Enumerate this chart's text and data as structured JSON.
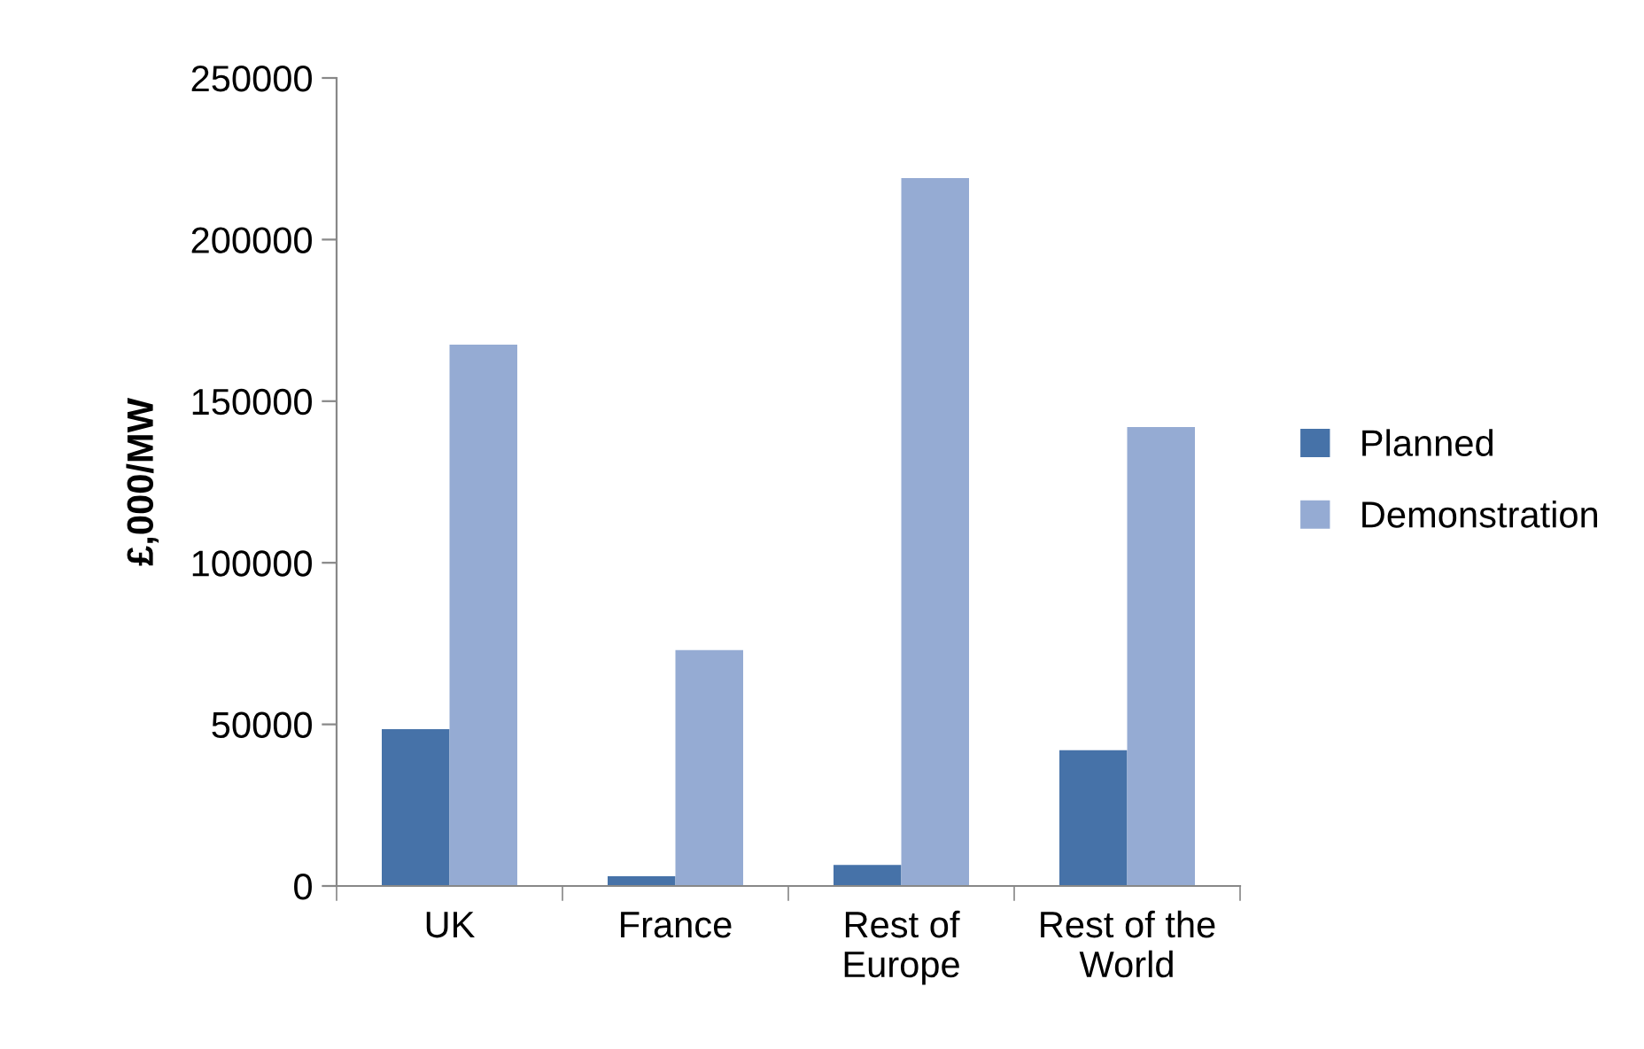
{
  "chart_data": {
    "type": "bar",
    "ylabel": "£,000/MW",
    "categories": [
      "UK",
      "France",
      "Rest of\nEurope",
      "Rest of the\nWorld"
    ],
    "series": [
      {
        "name": "Planned",
        "color": "#4672a8",
        "values": [
          48500,
          3000,
          6500,
          42000
        ]
      },
      {
        "name": "Demonstration",
        "color": "#95abd3",
        "values": [
          167500,
          73000,
          219000,
          142000
        ]
      }
    ],
    "ylim": [
      0,
      250000
    ],
    "yticks": [
      0,
      50000,
      100000,
      150000,
      200000,
      250000
    ],
    "grid": false,
    "legend": "right"
  }
}
